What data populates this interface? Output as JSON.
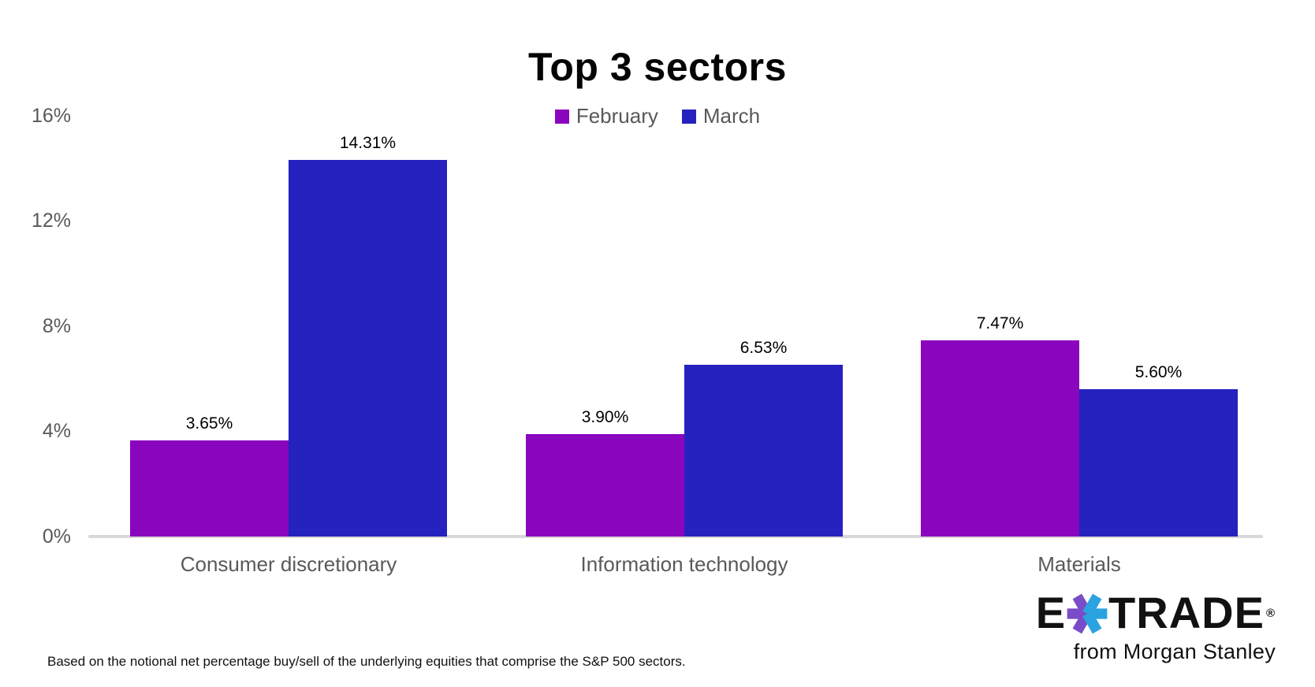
{
  "chart_data": {
    "type": "bar",
    "title": "Top 3 sectors",
    "categories": [
      "Consumer discretionary",
      "Information technology",
      "Materials"
    ],
    "series": [
      {
        "name": "February",
        "color": "#8A06BE",
        "values": [
          3.65,
          3.9,
          7.47
        ],
        "labels": [
          "3.65%",
          "3.90%",
          "7.47%"
        ]
      },
      {
        "name": "March",
        "color": "#2522BF",
        "values": [
          14.31,
          6.53,
          5.6
        ],
        "labels": [
          "14.31%",
          "6.53%",
          "5.60%"
        ]
      }
    ],
    "xlabel": "",
    "ylabel": "",
    "ylim": [
      0,
      16
    ],
    "yticks": [
      {
        "value": 16,
        "label": "16%"
      },
      {
        "value": 12,
        "label": "12%"
      },
      {
        "value": 8,
        "label": "8%"
      },
      {
        "value": 4,
        "label": "4%"
      },
      {
        "value": 0,
        "label": "0%"
      }
    ],
    "grid": false,
    "legend_position": "top-center",
    "axis_line_color": "#D8D8D8",
    "axis_text_color": "#595959"
  },
  "footer": {
    "note": "Based on the notional net percentage buy/sell of the underlying equities that comprise the S&P 500 sectors."
  },
  "branding": {
    "logo_e": "E",
    "logo_trade": "TRADE",
    "logo_reg": "®",
    "tagline": "from Morgan Stanley",
    "star_purple": "#7A4CC7",
    "star_blue": "#2BA3E0"
  }
}
